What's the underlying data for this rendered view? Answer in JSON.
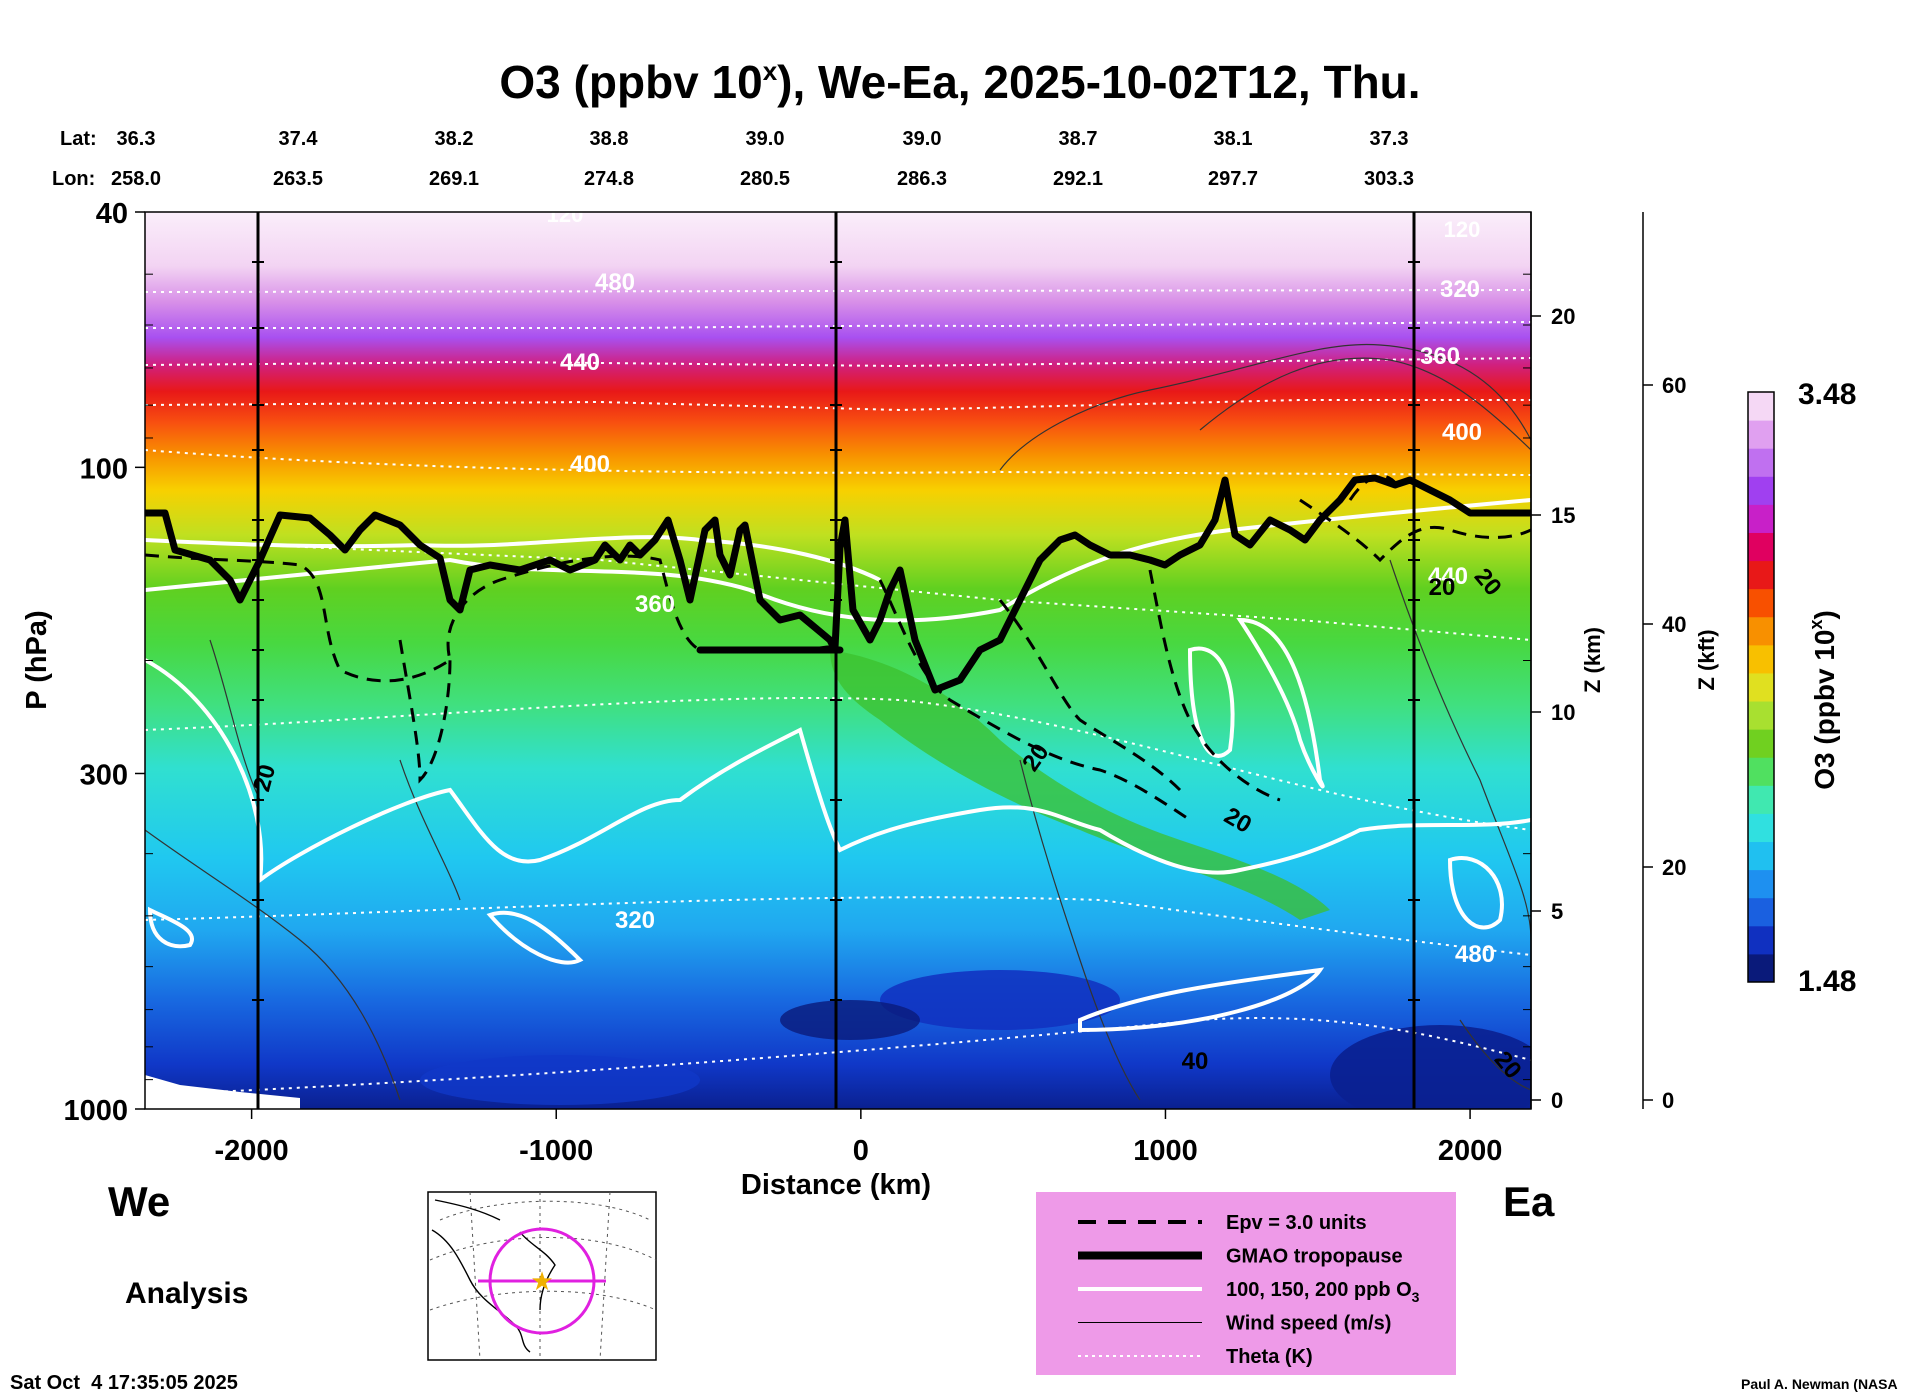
{
  "chart_data": {
    "type": "heatmap",
    "title": "O3 (ppbv 10",
    "title_sup": "x",
    "title_rest": "), We-Ea, 2025-10-02T12, Thu.",
    "lat_label": "Lat:",
    "lon_label": "Lon:",
    "lats": [
      "36.3",
      "37.4",
      "38.2",
      "38.8",
      "39.0",
      "39.0",
      "38.7",
      "38.1",
      "37.3"
    ],
    "lons": [
      "258.0",
      "263.5",
      "269.1",
      "274.8",
      "280.5",
      "286.3",
      "292.1",
      "297.7",
      "303.3"
    ],
    "xlabel": "Distance (km)",
    "xticks": [
      -2000,
      -1000,
      0,
      1000,
      2000
    ],
    "xlim": [
      -2350,
      2200
    ],
    "ylabel": "P (hPa)",
    "yticks": [
      40,
      100,
      300,
      1000
    ],
    "ylim": [
      1000,
      40
    ],
    "zkm_label": "Z (km)",
    "zkm_ticks": [
      0,
      5,
      10,
      15,
      20
    ],
    "zkft_label": "Z (kft)",
    "zkft_ticks": [
      0,
      20,
      40,
      60
    ],
    "colorbar_label": "O3 (ppbv 10",
    "colorbar_sup": "x",
    "colorbar_close": ")",
    "colorbar_max": "3.48",
    "colorbar_min": "1.48",
    "colorbar_colors": [
      "#0a1a7a",
      "#1030c0",
      "#1a60e0",
      "#1e90f0",
      "#20c0f0",
      "#30e0e0",
      "#40e8b0",
      "#50e060",
      "#70d020",
      "#a8e030",
      "#e0e020",
      "#f8c000",
      "#f89000",
      "#f85000",
      "#e81818",
      "#e00060",
      "#c820c8",
      "#a040f0",
      "#c070f0",
      "#e0a0f0",
      "#f5d8f5"
    ],
    "theta_labels": [
      "480",
      "440",
      "400",
      "360",
      "320",
      "320",
      "360",
      "400",
      "440",
      "480"
    ],
    "wind_labels": [
      "20",
      "20",
      "20",
      "40",
      "20",
      "20",
      "20"
    ],
    "ozone_contour_label": "120",
    "west_label": "We",
    "east_label": "Ea",
    "legend": [
      {
        "label": "Epv = 3.0 units",
        "style": "dashed"
      },
      {
        "label": "GMAO tropopause",
        "style": "thick"
      },
      {
        "label": "100, 150, 200 ppb O",
        "sub": "3",
        "style": "white"
      },
      {
        "label": "Wind speed (m/s)",
        "style": "thin"
      },
      {
        "label": "Theta (K)",
        "style": "dotted"
      }
    ]
  },
  "analysis_label": "Analysis",
  "timestamp": "Sat Oct  4 17:35:05 2025",
  "credit": "Paul A. Newman (NASA"
}
